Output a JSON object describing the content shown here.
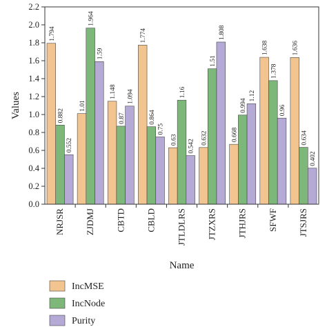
{
  "chart_data": {
    "type": "bar",
    "xlabel": "Name",
    "ylabel": "Values",
    "ylim": [
      0.0,
      2.2
    ],
    "yticks": [
      "0.0",
      "0.2",
      "0.4",
      "0.6",
      "0.8",
      "1.0",
      "1.2",
      "1.4",
      "1.6",
      "1.8",
      "2.0",
      "2.2"
    ],
    "categories": [
      "NRJSR",
      "ZJDMJ",
      "CBTD",
      "CBLD",
      "JTLDLRS",
      "JTZXRS",
      "JTHJRS",
      "SFWF",
      "JTSJRS"
    ],
    "series": [
      {
        "name": "IncMSE",
        "color": "#f2c490",
        "values": [
          1.794,
          1.01,
          1.148,
          1.774,
          0.63,
          0.632,
          0.668,
          1.638,
          1.636
        ],
        "labels": [
          "1.794",
          "1.01",
          "1.148",
          "1.774",
          "0.63",
          "0.632",
          "0.668",
          "1.638",
          "1.636"
        ]
      },
      {
        "name": "IncNode",
        "color": "#7db87a",
        "values": [
          0.882,
          1.964,
          0.87,
          0.864,
          1.16,
          1.51,
          0.994,
          1.378,
          0.634
        ],
        "labels": [
          "0.882",
          "1.964",
          "0.87",
          "0.864",
          "1.16",
          "1.51",
          "0.994",
          "1.378",
          "0.634"
        ]
      },
      {
        "name": "Purity",
        "color": "#b5a9d6",
        "values": [
          0.552,
          1.59,
          1.094,
          0.75,
          0.542,
          1.808,
          1.12,
          0.96,
          0.402
        ],
        "labels": [
          "0.552",
          "1.59",
          "1.094",
          "0.75",
          "0.542",
          "1.808",
          "1.12",
          "0.96",
          "0.402"
        ]
      }
    ],
    "legend_position": "bottom-left"
  }
}
